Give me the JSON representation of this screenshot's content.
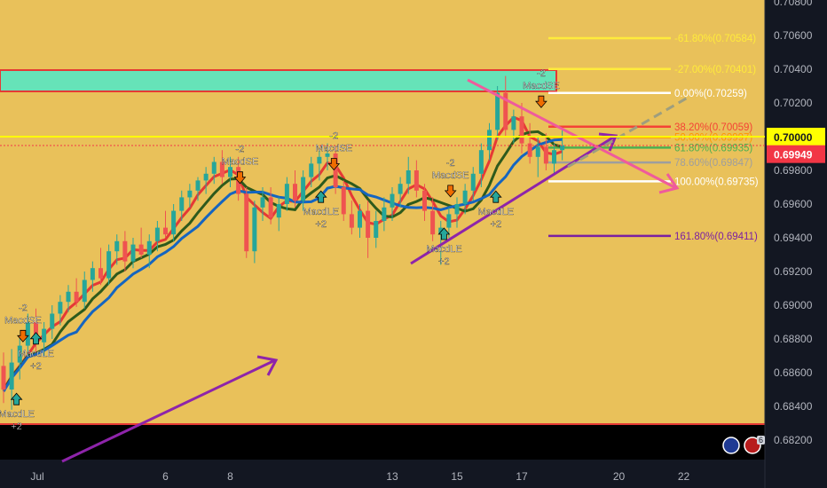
{
  "chart_data": {
    "type": "candlestick",
    "instrument_badge_count": "6",
    "x_axis": {
      "ticks": [
        {
          "label": "Jul",
          "day": 1
        },
        {
          "label": "6",
          "day": 6
        },
        {
          "label": "8",
          "day": 8
        },
        {
          "label": "13",
          "day": 13
        },
        {
          "label": "15",
          "day": 15
        },
        {
          "label": "17",
          "day": 17
        },
        {
          "label": "20",
          "day": 20
        },
        {
          "label": "22",
          "day": 22
        }
      ]
    },
    "y_axis": {
      "range": [
        0.681,
        0.708
      ],
      "ticks": [
        "0.70800",
        "0.70600",
        "0.70400",
        "0.70200",
        "0.70000",
        "0.69800",
        "0.69600",
        "0.69400",
        "0.69200",
        "0.69000",
        "0.68800",
        "0.68600",
        "0.68400",
        "0.68200"
      ],
      "current_price_label": "0.69949",
      "round_level_label": "0.70000",
      "colors": {
        "current": "#f23645",
        "round_level": "#ffff00"
      }
    },
    "fibonacci": [
      {
        "text": "-61.80%(0.70584)",
        "value": 0.70584,
        "color": "#ffeb3b"
      },
      {
        "text": "-27.00%(0.70401)",
        "value": 0.70401,
        "color": "#ffeb3b"
      },
      {
        "text": "0.00%(0.70259)",
        "value": 0.70259,
        "color": "#ffffff"
      },
      {
        "text": "38.20%(0.70059)",
        "value": 0.70059,
        "color": "#f44336"
      },
      {
        "text": "50.00%(0.69997)",
        "value": 0.69997,
        "color": "#ff9800"
      },
      {
        "text": "61.80%(0.69935)",
        "value": 0.69935,
        "color": "#4caf50"
      },
      {
        "text": "78.60%(0.69847)",
        "value": 0.69847,
        "color": "#9e9e9e"
      },
      {
        "text": "100.00%(0.69735)",
        "value": 0.69735,
        "color": "#ffffff"
      },
      {
        "text": "161.80%(0.69411)",
        "value": 0.69411,
        "color": "#7b1fa2"
      }
    ],
    "signals": [
      {
        "kind": "short",
        "count": "-2",
        "name": "MacdSE",
        "day": 0.6,
        "price": 0.6883
      },
      {
        "kind": "long",
        "count": "+2",
        "name": "MacdLE",
        "day": 1.0,
        "price": 0.6878
      },
      {
        "kind": "long",
        "count": "+2",
        "name": "MacdLE",
        "day": 0.4,
        "price": 0.6842
      },
      {
        "kind": "short",
        "count": "-2",
        "name": "MacdSE",
        "day": 7.3,
        "price": 0.6977
      },
      {
        "kind": "short",
        "count": "-2",
        "name": "MacdSE",
        "day": 10.2,
        "price": 0.6985
      },
      {
        "kind": "long",
        "count": "+2",
        "name": "MacdLE",
        "day": 9.8,
        "price": 0.6962
      },
      {
        "kind": "short",
        "count": "-2",
        "name": "MacdSE",
        "day": 13.8,
        "price": 0.6969
      },
      {
        "kind": "long",
        "count": "+2",
        "name": "MacdLE",
        "day": 15.2,
        "price": 0.6962
      },
      {
        "kind": "long",
        "count": "+2",
        "name": "MacdLE",
        "day": 13.6,
        "price": 0.694
      },
      {
        "kind": "short",
        "count": "-2",
        "name": "MacdSE",
        "day": 16.6,
        "price": 0.7022
      }
    ],
    "candles": [
      {
        "d": 0.0,
        "o": 0.6864,
        "h": 0.6872,
        "l": 0.6842,
        "c": 0.685
      },
      {
        "d": 0.25,
        "o": 0.685,
        "h": 0.6874,
        "l": 0.6838,
        "c": 0.6866
      },
      {
        "d": 0.5,
        "o": 0.6866,
        "h": 0.6882,
        "l": 0.6856,
        "c": 0.6876
      },
      {
        "d": 0.75,
        "o": 0.6876,
        "h": 0.6895,
        "l": 0.687,
        "c": 0.689
      },
      {
        "d": 1.0,
        "o": 0.689,
        "h": 0.6898,
        "l": 0.6872,
        "c": 0.6878
      },
      {
        "d": 1.25,
        "o": 0.6878,
        "h": 0.689,
        "l": 0.687,
        "c": 0.6886
      },
      {
        "d": 1.5,
        "o": 0.6886,
        "h": 0.69,
        "l": 0.688,
        "c": 0.6895
      },
      {
        "d": 1.75,
        "o": 0.6895,
        "h": 0.6906,
        "l": 0.6888,
        "c": 0.6902
      },
      {
        "d": 2.0,
        "o": 0.6902,
        "h": 0.6912,
        "l": 0.6896,
        "c": 0.6908
      },
      {
        "d": 2.25,
        "o": 0.6908,
        "h": 0.6916,
        "l": 0.6899,
        "c": 0.6902
      },
      {
        "d": 2.5,
        "o": 0.6902,
        "h": 0.692,
        "l": 0.6898,
        "c": 0.6915
      },
      {
        "d": 2.75,
        "o": 0.6915,
        "h": 0.6926,
        "l": 0.6908,
        "c": 0.6922
      },
      {
        "d": 3.0,
        "o": 0.6922,
        "h": 0.6934,
        "l": 0.6912,
        "c": 0.6916
      },
      {
        "d": 3.25,
        "o": 0.6916,
        "h": 0.6936,
        "l": 0.6912,
        "c": 0.6932
      },
      {
        "d": 3.5,
        "o": 0.6932,
        "h": 0.6942,
        "l": 0.6924,
        "c": 0.6938
      },
      {
        "d": 3.75,
        "o": 0.6938,
        "h": 0.6944,
        "l": 0.692,
        "c": 0.6926
      },
      {
        "d": 4.0,
        "o": 0.6926,
        "h": 0.694,
        "l": 0.6922,
        "c": 0.6936
      },
      {
        "d": 4.25,
        "o": 0.6936,
        "h": 0.6946,
        "l": 0.6928,
        "c": 0.693
      },
      {
        "d": 4.5,
        "o": 0.693,
        "h": 0.6942,
        "l": 0.6922,
        "c": 0.6938
      },
      {
        "d": 4.75,
        "o": 0.6938,
        "h": 0.695,
        "l": 0.6932,
        "c": 0.6946
      },
      {
        "d": 5.0,
        "o": 0.6946,
        "h": 0.6956,
        "l": 0.694,
        "c": 0.6942
      },
      {
        "d": 5.25,
        "o": 0.6942,
        "h": 0.696,
        "l": 0.6938,
        "c": 0.6956
      },
      {
        "d": 5.5,
        "o": 0.6956,
        "h": 0.6968,
        "l": 0.695,
        "c": 0.6964
      },
      {
        "d": 5.75,
        "o": 0.6964,
        "h": 0.6972,
        "l": 0.6958,
        "c": 0.6968
      },
      {
        "d": 6.0,
        "o": 0.6968,
        "h": 0.6976,
        "l": 0.6962,
        "c": 0.6974
      },
      {
        "d": 6.25,
        "o": 0.6974,
        "h": 0.6982,
        "l": 0.6966,
        "c": 0.6978
      },
      {
        "d": 6.5,
        "o": 0.6978,
        "h": 0.6988,
        "l": 0.6972,
        "c": 0.6985
      },
      {
        "d": 6.75,
        "o": 0.6985,
        "h": 0.6992,
        "l": 0.6972,
        "c": 0.6976
      },
      {
        "d": 7.0,
        "o": 0.6976,
        "h": 0.6988,
        "l": 0.697,
        "c": 0.6982
      },
      {
        "d": 7.25,
        "o": 0.6982,
        "h": 0.6988,
        "l": 0.6962,
        "c": 0.6966
      },
      {
        "d": 7.5,
        "o": 0.6966,
        "h": 0.697,
        "l": 0.6928,
        "c": 0.6932
      },
      {
        "d": 7.75,
        "o": 0.6932,
        "h": 0.6962,
        "l": 0.6925,
        "c": 0.6958
      },
      {
        "d": 8.0,
        "o": 0.6958,
        "h": 0.697,
        "l": 0.695,
        "c": 0.6964
      },
      {
        "d": 8.25,
        "o": 0.6964,
        "h": 0.697,
        "l": 0.6948,
        "c": 0.6952
      },
      {
        "d": 8.5,
        "o": 0.6952,
        "h": 0.6964,
        "l": 0.6944,
        "c": 0.696
      },
      {
        "d": 8.75,
        "o": 0.696,
        "h": 0.6976,
        "l": 0.6956,
        "c": 0.6972
      },
      {
        "d": 9.0,
        "o": 0.6972,
        "h": 0.698,
        "l": 0.6958,
        "c": 0.6962
      },
      {
        "d": 9.25,
        "o": 0.6962,
        "h": 0.698,
        "l": 0.6956,
        "c": 0.6976
      },
      {
        "d": 9.5,
        "o": 0.6976,
        "h": 0.6988,
        "l": 0.697,
        "c": 0.6984
      },
      {
        "d": 9.75,
        "o": 0.6984,
        "h": 0.6992,
        "l": 0.6974,
        "c": 0.6988
      },
      {
        "d": 10.0,
        "o": 0.6988,
        "h": 0.6996,
        "l": 0.698,
        "c": 0.699
      },
      {
        "d": 10.25,
        "o": 0.699,
        "h": 0.6994,
        "l": 0.6966,
        "c": 0.697
      },
      {
        "d": 10.5,
        "o": 0.697,
        "h": 0.6974,
        "l": 0.695,
        "c": 0.6954
      },
      {
        "d": 10.75,
        "o": 0.6954,
        "h": 0.6962,
        "l": 0.6942,
        "c": 0.6946
      },
      {
        "d": 11.0,
        "o": 0.6946,
        "h": 0.696,
        "l": 0.694,
        "c": 0.6956
      },
      {
        "d": 11.25,
        "o": 0.6956,
        "h": 0.6962,
        "l": 0.6928,
        "c": 0.694
      },
      {
        "d": 11.5,
        "o": 0.694,
        "h": 0.6956,
        "l": 0.6934,
        "c": 0.695
      },
      {
        "d": 11.75,
        "o": 0.695,
        "h": 0.6964,
        "l": 0.6944,
        "c": 0.6958
      },
      {
        "d": 12.0,
        "o": 0.6958,
        "h": 0.697,
        "l": 0.695,
        "c": 0.6966
      },
      {
        "d": 12.25,
        "o": 0.6966,
        "h": 0.6976,
        "l": 0.6958,
        "c": 0.6972
      },
      {
        "d": 12.5,
        "o": 0.6972,
        "h": 0.6988,
        "l": 0.6966,
        "c": 0.698
      },
      {
        "d": 12.75,
        "o": 0.698,
        "h": 0.6986,
        "l": 0.6964,
        "c": 0.6968
      },
      {
        "d": 13.0,
        "o": 0.6968,
        "h": 0.6972,
        "l": 0.695,
        "c": 0.6956
      },
      {
        "d": 13.25,
        "o": 0.6956,
        "h": 0.6964,
        "l": 0.6938,
        "c": 0.6942
      },
      {
        "d": 13.5,
        "o": 0.6942,
        "h": 0.695,
        "l": 0.6924,
        "c": 0.6946
      },
      {
        "d": 13.75,
        "o": 0.6946,
        "h": 0.6958,
        "l": 0.694,
        "c": 0.6954
      },
      {
        "d": 14.0,
        "o": 0.6954,
        "h": 0.6964,
        "l": 0.6946,
        "c": 0.696
      },
      {
        "d": 14.25,
        "o": 0.696,
        "h": 0.6972,
        "l": 0.6954,
        "c": 0.6968
      },
      {
        "d": 14.5,
        "o": 0.6968,
        "h": 0.6982,
        "l": 0.6962,
        "c": 0.6978
      },
      {
        "d": 14.75,
        "o": 0.6978,
        "h": 0.6996,
        "l": 0.697,
        "c": 0.6992
      },
      {
        "d": 15.0,
        "o": 0.6992,
        "h": 0.7008,
        "l": 0.6986,
        "c": 0.7004
      },
      {
        "d": 15.25,
        "o": 0.7004,
        "h": 0.703,
        "l": 0.6998,
        "c": 0.7026
      },
      {
        "d": 15.5,
        "o": 0.7026,
        "h": 0.7036,
        "l": 0.7,
        "c": 0.7004
      },
      {
        "d": 15.75,
        "o": 0.7004,
        "h": 0.7016,
        "l": 0.6996,
        "c": 0.7012
      },
      {
        "d": 16.0,
        "o": 0.7012,
        "h": 0.702,
        "l": 0.699,
        "c": 0.6996
      },
      {
        "d": 16.25,
        "o": 0.6996,
        "h": 0.7008,
        "l": 0.6984,
        "c": 0.6988
      },
      {
        "d": 16.5,
        "o": 0.6988,
        "h": 0.7,
        "l": 0.6976,
        "c": 0.6994
      },
      {
        "d": 16.75,
        "o": 0.6994,
        "h": 0.7002,
        "l": 0.698,
        "c": 0.6984
      },
      {
        "d": 17.0,
        "o": 0.6984,
        "h": 0.6996,
        "l": 0.6978,
        "c": 0.6992
      },
      {
        "d": 17.25,
        "o": 0.6992,
        "h": 0.7004,
        "l": 0.6986,
        "c": 0.69949
      }
    ]
  }
}
